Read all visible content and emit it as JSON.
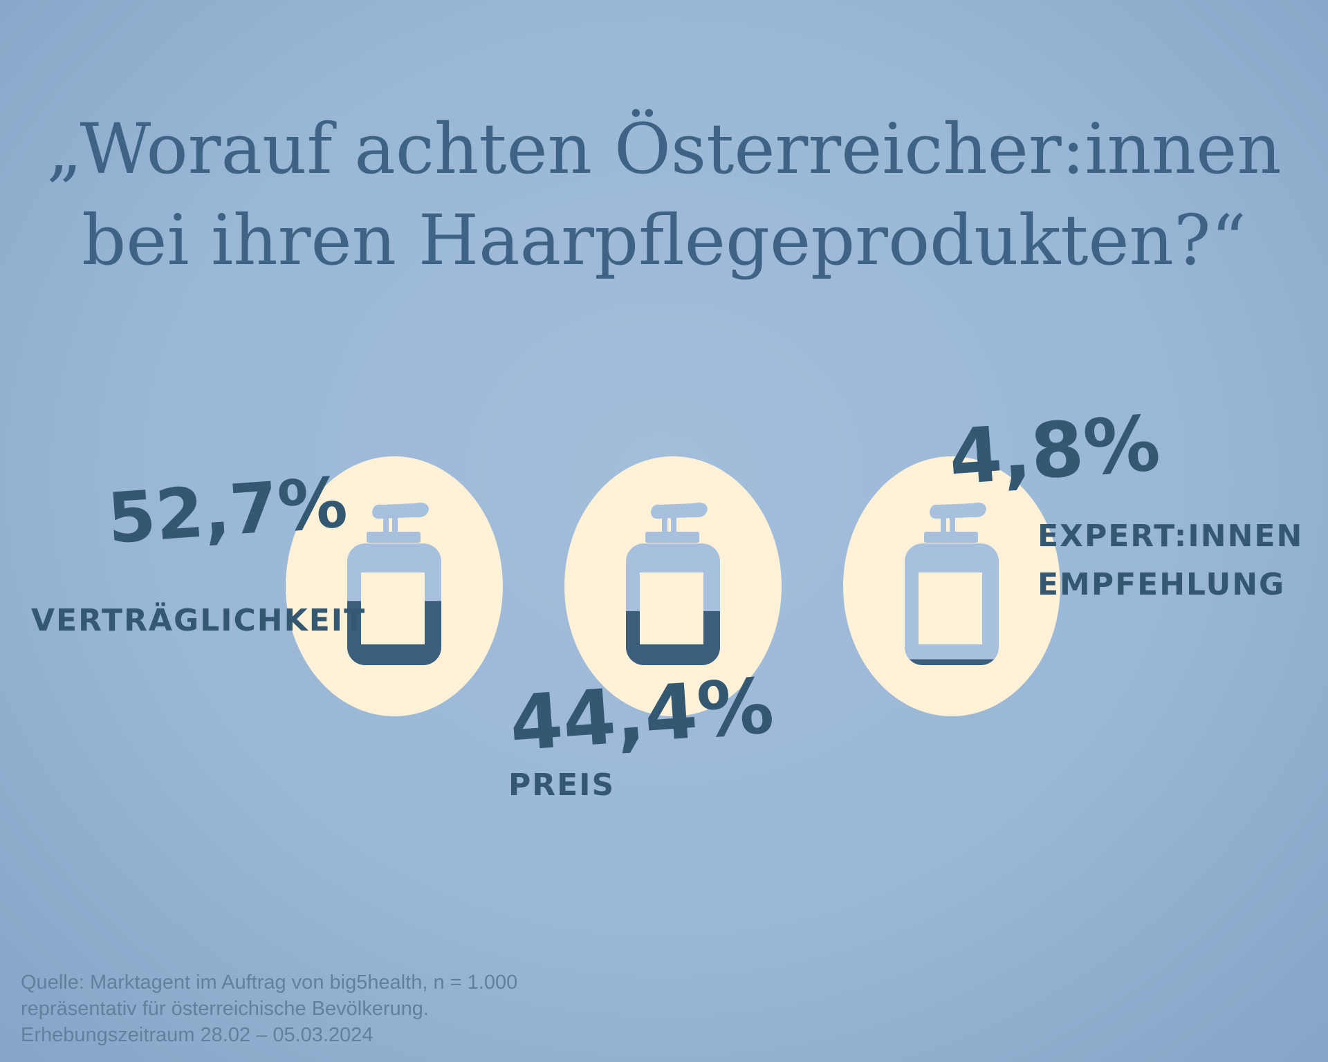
{
  "title": {
    "line1": "„Worauf achten Österreicher:innen",
    "line2": "bei ihren Haarpflegeprodukten?“"
  },
  "chart_data": {
    "type": "pictogram",
    "unit": "%",
    "items": [
      {
        "label": "VERTRÄGLICHKEIT",
        "value": 52.7,
        "value_label": "52,7%"
      },
      {
        "label": "PREIS",
        "value": 44.4,
        "value_label": "44,4%"
      },
      {
        "label_lines": [
          "EXPERT:INNEN",
          "EMPFEHLUNG"
        ],
        "value": 4.8,
        "value_label": "4,8%"
      }
    ]
  },
  "source": {
    "line1": "Quelle: Marktagent im Auftrag von big5health, n = 1.000",
    "line2": "repräsentativ für österreichische Bevölkerung.",
    "line3": "Erhebungszeitraum 28.02 – 05.03.2024"
  },
  "colors": {
    "background": "#9ab7d6",
    "circle": "#fdf1d8",
    "bottle": "#a6c0de",
    "fill": "#3b5e7c",
    "text": "#3f6384"
  }
}
